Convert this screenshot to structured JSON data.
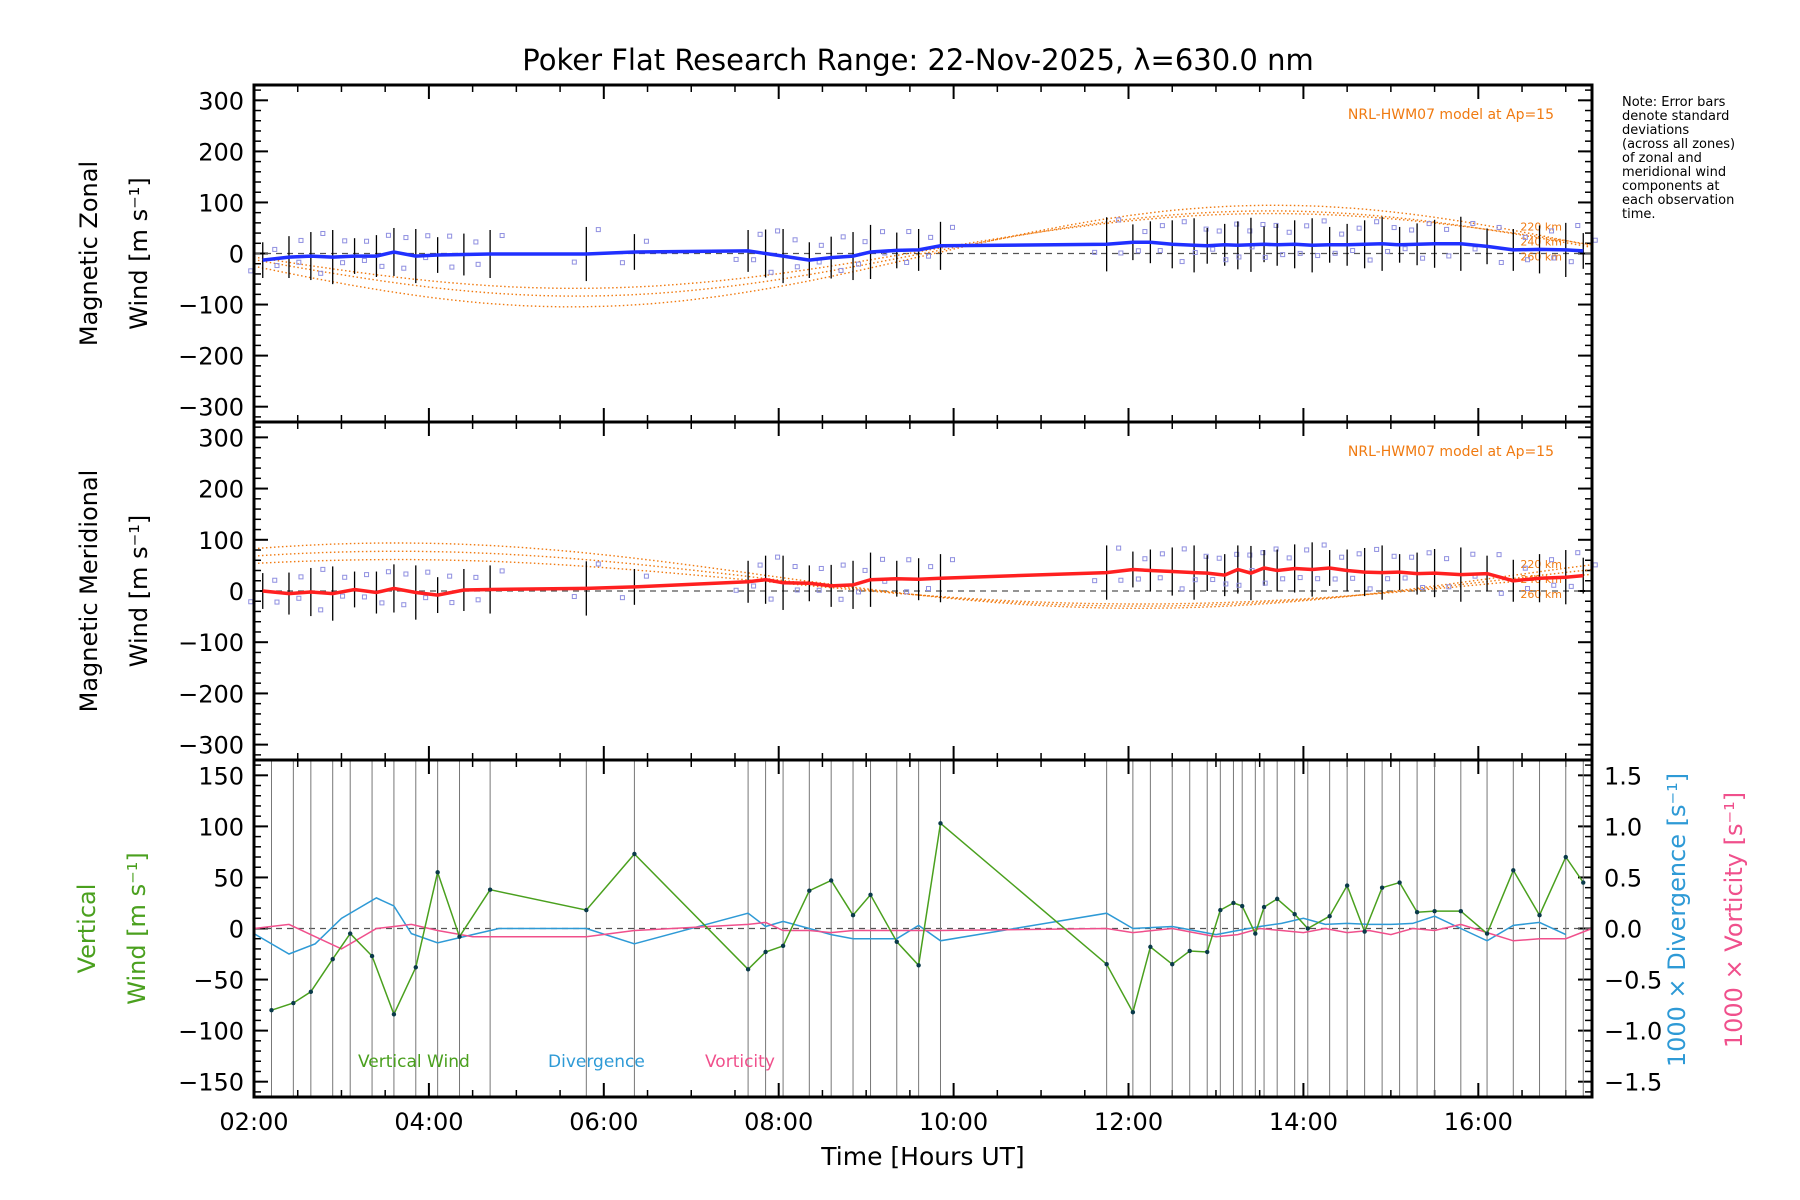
{
  "chart_data": [
    {
      "type": "line",
      "title": "Poker Flat Research Range: 22-Nov-2025, λ=630.0 nm",
      "ylabel_line1": "Magnetic Zonal",
      "ylabel_line2": "Wind [m s⁻¹]",
      "ylim": [
        -330,
        330
      ],
      "yticks": [
        300,
        200,
        100,
        0,
        -100,
        -200,
        -300
      ],
      "model_label": "NRL-HWM07 model at Ap=15",
      "model_altitudes": [
        "220 km",
        "240 km",
        "260 km"
      ],
      "series": [
        {
          "name": "Zonal wind",
          "x": [
            2.1,
            2.4,
            2.65,
            2.9,
            3.15,
            3.4,
            3.6,
            3.85,
            4.1,
            4.4,
            4.7,
            5.8,
            6.35,
            7.65,
            7.85,
            8.05,
            8.35,
            8.6,
            8.85,
            9.05,
            9.35,
            9.6,
            9.85,
            11.75,
            12.05,
            12.25,
            12.5,
            12.75,
            12.9,
            13.1,
            13.25,
            13.4,
            13.55,
            13.7,
            13.9,
            14.1,
            14.3,
            14.5,
            14.7,
            14.9,
            15.1,
            15.3,
            15.5,
            15.8,
            16.1,
            16.4,
            16.7,
            17.0,
            17.2
          ],
          "values": [
            -13,
            -7,
            -5,
            -7,
            -5,
            -5,
            3,
            -5,
            -3,
            -2,
            -1,
            -1,
            3,
            5,
            0,
            -5,
            -13,
            -8,
            -5,
            3,
            6,
            7,
            15,
            18,
            22,
            22,
            18,
            16,
            15,
            17,
            16,
            17,
            18,
            17,
            18,
            16,
            17,
            17,
            18,
            19,
            17,
            18,
            19,
            19,
            14,
            7,
            8,
            7,
            5
          ]
        }
      ]
    },
    {
      "type": "line",
      "ylabel_line1": "Magnetic Meridional",
      "ylabel_line2": "Wind [m s⁻¹]",
      "ylim": [
        -330,
        330
      ],
      "yticks": [
        300,
        200,
        100,
        0,
        -100,
        -200,
        -300
      ],
      "model_label": "NRL-HWM07 model at Ap=15",
      "model_altitudes": [
        "220 km",
        "240 km",
        "260 km"
      ],
      "series": [
        {
          "name": "Meridional wind",
          "x": [
            2.1,
            2.4,
            2.65,
            2.9,
            3.15,
            3.4,
            3.6,
            3.85,
            4.1,
            4.4,
            4.7,
            5.8,
            6.35,
            7.65,
            7.85,
            8.05,
            8.35,
            8.6,
            8.85,
            9.05,
            9.35,
            9.6,
            9.85,
            11.75,
            12.05,
            12.25,
            12.5,
            12.75,
            12.9,
            13.1,
            13.25,
            13.4,
            13.55,
            13.7,
            13.9,
            14.1,
            14.3,
            14.5,
            14.7,
            14.9,
            15.1,
            15.3,
            15.5,
            15.8,
            16.1,
            16.4,
            16.7,
            17.0,
            17.2
          ],
          "values": [
            0,
            -5,
            -2,
            -5,
            3,
            -3,
            5,
            -3,
            -8,
            2,
            3,
            5,
            8,
            18,
            22,
            16,
            15,
            10,
            12,
            22,
            24,
            23,
            25,
            36,
            42,
            40,
            38,
            36,
            35,
            31,
            42,
            35,
            45,
            40,
            44,
            42,
            45,
            40,
            37,
            36,
            37,
            34,
            35,
            32,
            34,
            20,
            25,
            27,
            30
          ]
        }
      ]
    },
    {
      "type": "line",
      "ylabel_line1": "Vertical",
      "ylabel_line2": "Wind [m s⁻¹]",
      "ylim": [
        -165,
        165
      ],
      "yticks": [
        150,
        100,
        50,
        0,
        -50,
        -100,
        -150
      ],
      "y2label_1": "1000 × Divergence [s⁻¹]",
      "y2label_2": "1000 × Vorticity [s⁻¹]",
      "y2ticks": [
        "1.5",
        "1.0",
        "0.5",
        "0.0",
        "−0.5",
        "−1.0",
        "−1.5"
      ],
      "legend": [
        "Vertical Wind",
        "Divergence",
        "Vorticity"
      ],
      "xlabel": "Time [Hours UT]",
      "xticks": [
        "02:00",
        "04:00",
        "06:00",
        "08:00",
        "10:00",
        "12:00",
        "14:00",
        "16:00"
      ],
      "xlim": [
        2.0,
        17.3
      ],
      "series": [
        {
          "name": "Vertical Wind",
          "x": [
            2.2,
            2.45,
            2.65,
            2.9,
            3.1,
            3.35,
            3.6,
            3.85,
            4.1,
            4.35,
            4.7,
            5.8,
            6.35,
            7.65,
            7.85,
            8.05,
            8.35,
            8.6,
            8.85,
            9.05,
            9.35,
            9.6,
            9.85,
            11.75,
            12.05,
            12.25,
            12.5,
            12.7,
            12.9,
            13.05,
            13.2,
            13.3,
            13.45,
            13.55,
            13.7,
            13.9,
            14.05,
            14.3,
            14.5,
            14.7,
            14.9,
            15.1,
            15.3,
            15.5,
            15.8,
            16.1,
            16.4,
            16.7,
            17.0,
            17.2
          ],
          "values": [
            -80,
            -73,
            -62,
            -30,
            -5,
            -27,
            -84,
            -38,
            55,
            -8,
            38,
            18,
            73,
            -40,
            -23,
            -17,
            37,
            47,
            13,
            33,
            -13,
            -36,
            103,
            -35,
            -82,
            -18,
            -35,
            -22,
            -23,
            18,
            25,
            22,
            -5,
            21,
            29,
            14,
            0,
            12,
            42,
            -3,
            40,
            45,
            16,
            17,
            17,
            -5,
            57,
            13,
            70,
            45
          ]
        },
        {
          "name": "Divergence",
          "x": [
            2.0,
            2.4,
            2.7,
            3.0,
            3.4,
            3.6,
            3.8,
            4.1,
            4.5,
            4.8,
            5.8,
            6.35,
            7.65,
            7.85,
            8.05,
            8.35,
            8.6,
            8.85,
            9.05,
            9.35,
            9.6,
            9.85,
            11.75,
            12.05,
            12.5,
            12.75,
            13.0,
            13.25,
            13.5,
            13.75,
            14.0,
            14.25,
            14.5,
            14.75,
            15.0,
            15.25,
            15.5,
            15.8,
            16.1,
            16.4,
            16.7,
            17.0
          ],
          "values": [
            -0.05,
            -0.25,
            -0.15,
            0.1,
            0.3,
            0.22,
            -0.05,
            -0.14,
            -0.06,
            0.0,
            0.0,
            -0.15,
            0.15,
            0.02,
            0.07,
            0.0,
            -0.06,
            -0.1,
            -0.1,
            -0.1,
            0.03,
            -0.12,
            0.15,
            0.0,
            0.02,
            -0.02,
            -0.06,
            -0.02,
            0.02,
            0.05,
            0.1,
            0.04,
            0.05,
            0.04,
            0.04,
            0.05,
            0.12,
            0.0,
            -0.12,
            0.03,
            0.06,
            -0.06
          ]
        },
        {
          "name": "Vorticity",
          "x": [
            2.0,
            2.4,
            2.7,
            3.0,
            3.4,
            3.6,
            3.8,
            4.1,
            4.5,
            4.8,
            5.8,
            6.35,
            7.65,
            7.85,
            8.05,
            8.35,
            8.6,
            8.85,
            9.05,
            9.35,
            9.6,
            9.85,
            11.75,
            12.05,
            12.5,
            12.75,
            13.0,
            13.25,
            13.5,
            13.75,
            14.0,
            14.25,
            14.5,
            14.75,
            15.0,
            15.25,
            15.5,
            15.8,
            16.1,
            16.4,
            16.7,
            17.0,
            17.3
          ],
          "values": [
            0.0,
            0.04,
            -0.08,
            -0.2,
            0.0,
            0.02,
            0.04,
            -0.02,
            -0.08,
            -0.08,
            -0.08,
            -0.02,
            0.04,
            0.06,
            -0.02,
            -0.02,
            -0.04,
            -0.02,
            -0.02,
            -0.02,
            -0.02,
            -0.02,
            0.0,
            -0.04,
            0.0,
            -0.04,
            -0.08,
            -0.06,
            0.0,
            -0.02,
            -0.04,
            0.0,
            -0.04,
            -0.02,
            -0.06,
            0.0,
            -0.02,
            0.04,
            -0.04,
            -0.12,
            -0.1,
            -0.1,
            0.0
          ]
        }
      ]
    }
  ],
  "note_lines": [
    "Note: Error bars",
    "denote standard",
    "deviations",
    "(across all zones)",
    "of zonal and",
    "meridional wind",
    "components at",
    "each observation",
    "time."
  ],
  "colors": {
    "zonal": "#2030ff",
    "meridional": "#ff2020",
    "vertical": "#4aa01e",
    "divergence": "#2e9ad6",
    "vorticity": "#f0508c",
    "model": "#f07a10",
    "scatter": "#8f8fe0"
  }
}
